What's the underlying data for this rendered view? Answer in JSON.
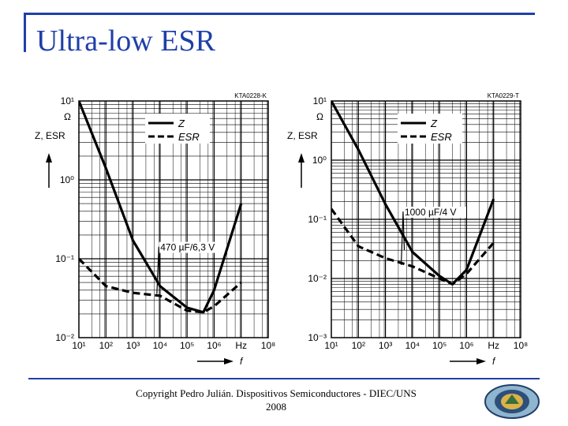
{
  "slide": {
    "title": "Ultra-low ESR",
    "footer_line1": "Copyright Pedro Julián. Dispositivos Semiconductores - DIEC/UNS",
    "footer_line2": "2008"
  },
  "chart_data": [
    {
      "type": "line",
      "code": "KTA0228-K",
      "ylabel": "Z, ESR",
      "yunit": "Ω",
      "xlabel": "f",
      "xunit": "Hz",
      "xscale": "log",
      "yscale": "log",
      "xlim": [
        10,
        100000000
      ],
      "ylim": [
        0.01,
        10
      ],
      "xticks": [
        "10¹",
        "10²",
        "10³",
        "10⁴",
        "10⁵",
        "10⁶",
        "10⁸"
      ],
      "yticks": [
        "10¹",
        "10⁰",
        "10⁻¹",
        "10⁻²"
      ],
      "annotation": "470 µF/6,3 V",
      "legend": [
        "Z",
        "ESR"
      ],
      "legend_position": "top-right",
      "grid": true,
      "series": [
        {
          "name": "Z",
          "x": [
            10,
            100,
            1000,
            10000,
            100000,
            400000,
            1000000,
            10000000
          ],
          "y": [
            10,
            1.4,
            0.17,
            0.045,
            0.024,
            0.021,
            0.04,
            0.5
          ]
        },
        {
          "name": "ESR",
          "x": [
            10,
            100,
            1000,
            10000,
            100000,
            400000,
            1000000,
            10000000
          ],
          "y": [
            0.1,
            0.045,
            0.037,
            0.034,
            0.022,
            0.021,
            0.025,
            0.05
          ]
        }
      ]
    },
    {
      "type": "line",
      "code": "KTA0229-T",
      "ylabel": "Z, ESR",
      "yunit": "Ω",
      "xlabel": "f",
      "xunit": "Hz",
      "xscale": "log",
      "yscale": "log",
      "xlim": [
        10,
        100000000
      ],
      "ylim": [
        0.001,
        10
      ],
      "xticks": [
        "10¹",
        "10²",
        "10³",
        "10⁴",
        "10⁵",
        "10⁶",
        "10⁸"
      ],
      "yticks": [
        "10¹",
        "10⁰",
        "10⁻¹",
        "10⁻²",
        "10⁻³"
      ],
      "annotation": "1000 µF/4 V",
      "legend": [
        "Z",
        "ESR"
      ],
      "legend_position": "top-right",
      "grid": true,
      "series": [
        {
          "name": "Z",
          "x": [
            10,
            100,
            1000,
            10000,
            100000,
            300000,
            1000000,
            10000000
          ],
          "y": [
            10,
            1.5,
            0.18,
            0.028,
            0.011,
            0.008,
            0.014,
            0.22
          ]
        },
        {
          "name": "ESR",
          "x": [
            10,
            100,
            1000,
            10000,
            100000,
            300000,
            1000000,
            10000000
          ],
          "y": [
            0.15,
            0.035,
            0.022,
            0.016,
            0.01,
            0.008,
            0.012,
            0.04
          ]
        }
      ]
    }
  ]
}
